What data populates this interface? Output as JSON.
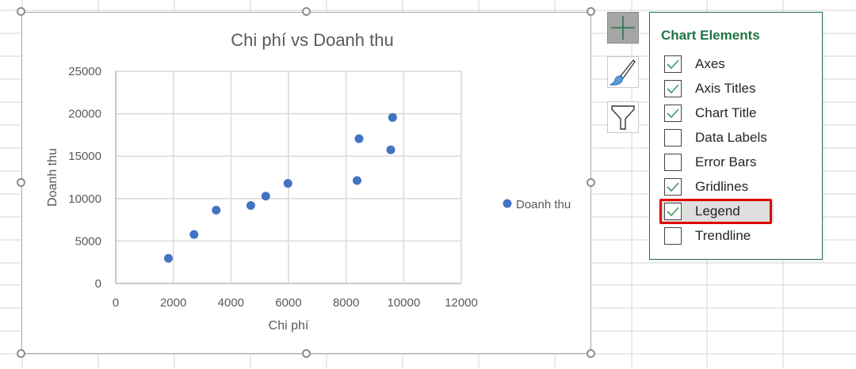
{
  "chart_data": {
    "type": "scatter",
    "title": "Chi phí vs Doanh thu",
    "xlabel": "Chi phí",
    "ylabel": "Doanh thu",
    "xlim": [
      0,
      12000
    ],
    "ylim": [
      0,
      25000
    ],
    "x_ticks": [
      "0",
      "2000",
      "4000",
      "6000",
      "8000",
      "10000",
      "12000"
    ],
    "y_ticks": [
      "0",
      "5000",
      "10000",
      "15000",
      "20000",
      "25000"
    ],
    "grid": true,
    "legend_position": "right",
    "series": [
      {
        "name": "Doanh thu",
        "color": "#4472c4",
        "points": [
          {
            "x": 1830,
            "y": 2960
          },
          {
            "x": 2720,
            "y": 5770
          },
          {
            "x": 3490,
            "y": 8640
          },
          {
            "x": 4690,
            "y": 9190
          },
          {
            "x": 5210,
            "y": 10280
          },
          {
            "x": 5980,
            "y": 11790
          },
          {
            "x": 8380,
            "y": 12130
          },
          {
            "x": 8450,
            "y": 17060
          },
          {
            "x": 9550,
            "y": 15740
          },
          {
            "x": 9615,
            "y": 19560
          }
        ]
      }
    ]
  },
  "legend": {
    "label": "Doanh thu"
  },
  "side_buttons": [
    {
      "name": "chart-elements-button",
      "icon": "plus-icon",
      "active": true
    },
    {
      "name": "chart-styles-button",
      "icon": "paintbrush-icon",
      "active": false
    },
    {
      "name": "chart-filters-button",
      "icon": "funnel-icon",
      "active": false
    }
  ],
  "chart_elements_panel": {
    "title": "Chart Elements",
    "items": [
      {
        "label": "Axes",
        "checked": true
      },
      {
        "label": "Axis Titles",
        "checked": true
      },
      {
        "label": "Chart Title",
        "checked": true
      },
      {
        "label": "Data Labels",
        "checked": false
      },
      {
        "label": "Error Bars",
        "checked": false
      },
      {
        "label": "Gridlines",
        "checked": true
      },
      {
        "label": "Legend",
        "checked": true,
        "highlighted": true
      },
      {
        "label": "Trendline",
        "checked": false
      }
    ]
  },
  "colors": {
    "accent": "#217346",
    "marker": "#4472c4",
    "highlight": "#e00000"
  }
}
